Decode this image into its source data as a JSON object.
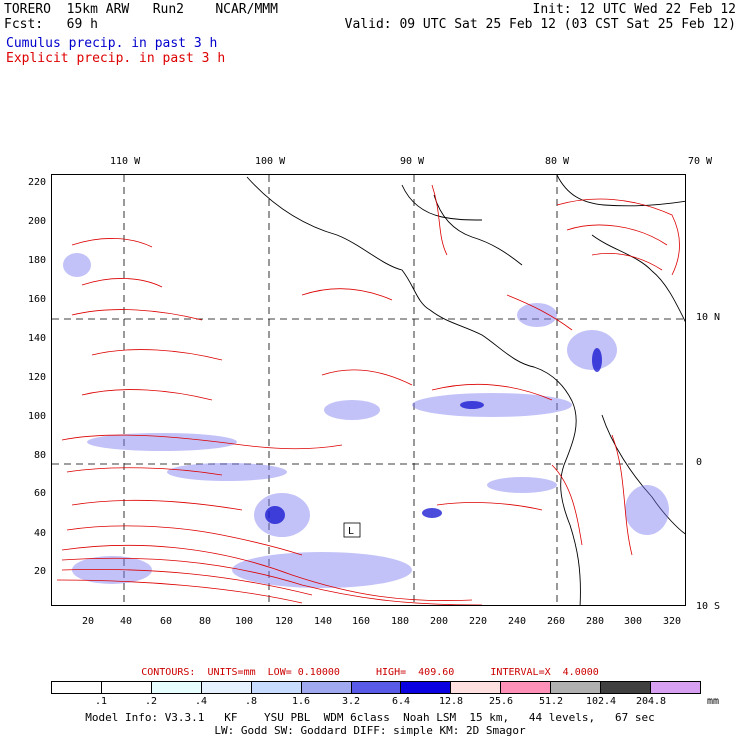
{
  "header": {
    "line1_left": "TORERO  15km ARW   Run2    NCAR/MMM",
    "line2_left": "Fcst:   69 h",
    "line1_right": "Init: 12 UTC Wed 22 Feb 12",
    "line2_right": "Valid: 09 UTC Sat 25 Feb 12 (03 CST Sat 25 Feb 12)"
  },
  "legend": {
    "cumulus": "Cumulus precip. in past 3 h",
    "explicit": "Explicit precip. in past 3 h"
  },
  "axes": {
    "x_ticks": [
      "20",
      "40",
      "60",
      "80",
      "100",
      "120",
      "140",
      "160",
      "180",
      "200",
      "220",
      "240",
      "260",
      "280",
      "300",
      "320"
    ],
    "y_ticks": [
      "20",
      "40",
      "60",
      "80",
      "100",
      "120",
      "140",
      "160",
      "180",
      "200",
      "220"
    ],
    "lon_labels": [
      "110 W",
      "100 W",
      "90 W",
      "80 W",
      "70 W"
    ],
    "lat_labels": [
      "10 N",
      "0",
      "10 S"
    ]
  },
  "map_annotation": "L",
  "contours": {
    "units": "mm",
    "low": "0.10000",
    "high": "409.60",
    "interval": "X  4.0000",
    "text": "CONTOURS:  UNITS=mm  LOW= 0.10000      HIGH=  409.60      INTERVAL=X  4.0000"
  },
  "colorbar": {
    "labels": [
      ".1",
      ".2",
      ".4",
      ".8",
      "1.6",
      "3.2",
      "6.4",
      "12.8",
      "25.6",
      "51.2",
      "102.4",
      "204.8"
    ],
    "colors": [
      "#ffffff",
      "#ffffff",
      "#e8ffff",
      "#e6f2ff",
      "#c8dcff",
      "#a0a8f0",
      "#5a5ae8",
      "#0a00e0",
      "#ffe0e0",
      "#ff90b8",
      "#b0b0b0",
      "#404040",
      "#d8a0f0"
    ],
    "unit": "mm"
  },
  "footer": {
    "line1": "Model Info: V3.3.1   KF    YSU PBL  WDM 6class  Noah LSM  15 km,   44 levels,   67 sec",
    "line2": "LW: Godd SW: Goddard DIFF: simple KM: 2D Smagor"
  }
}
